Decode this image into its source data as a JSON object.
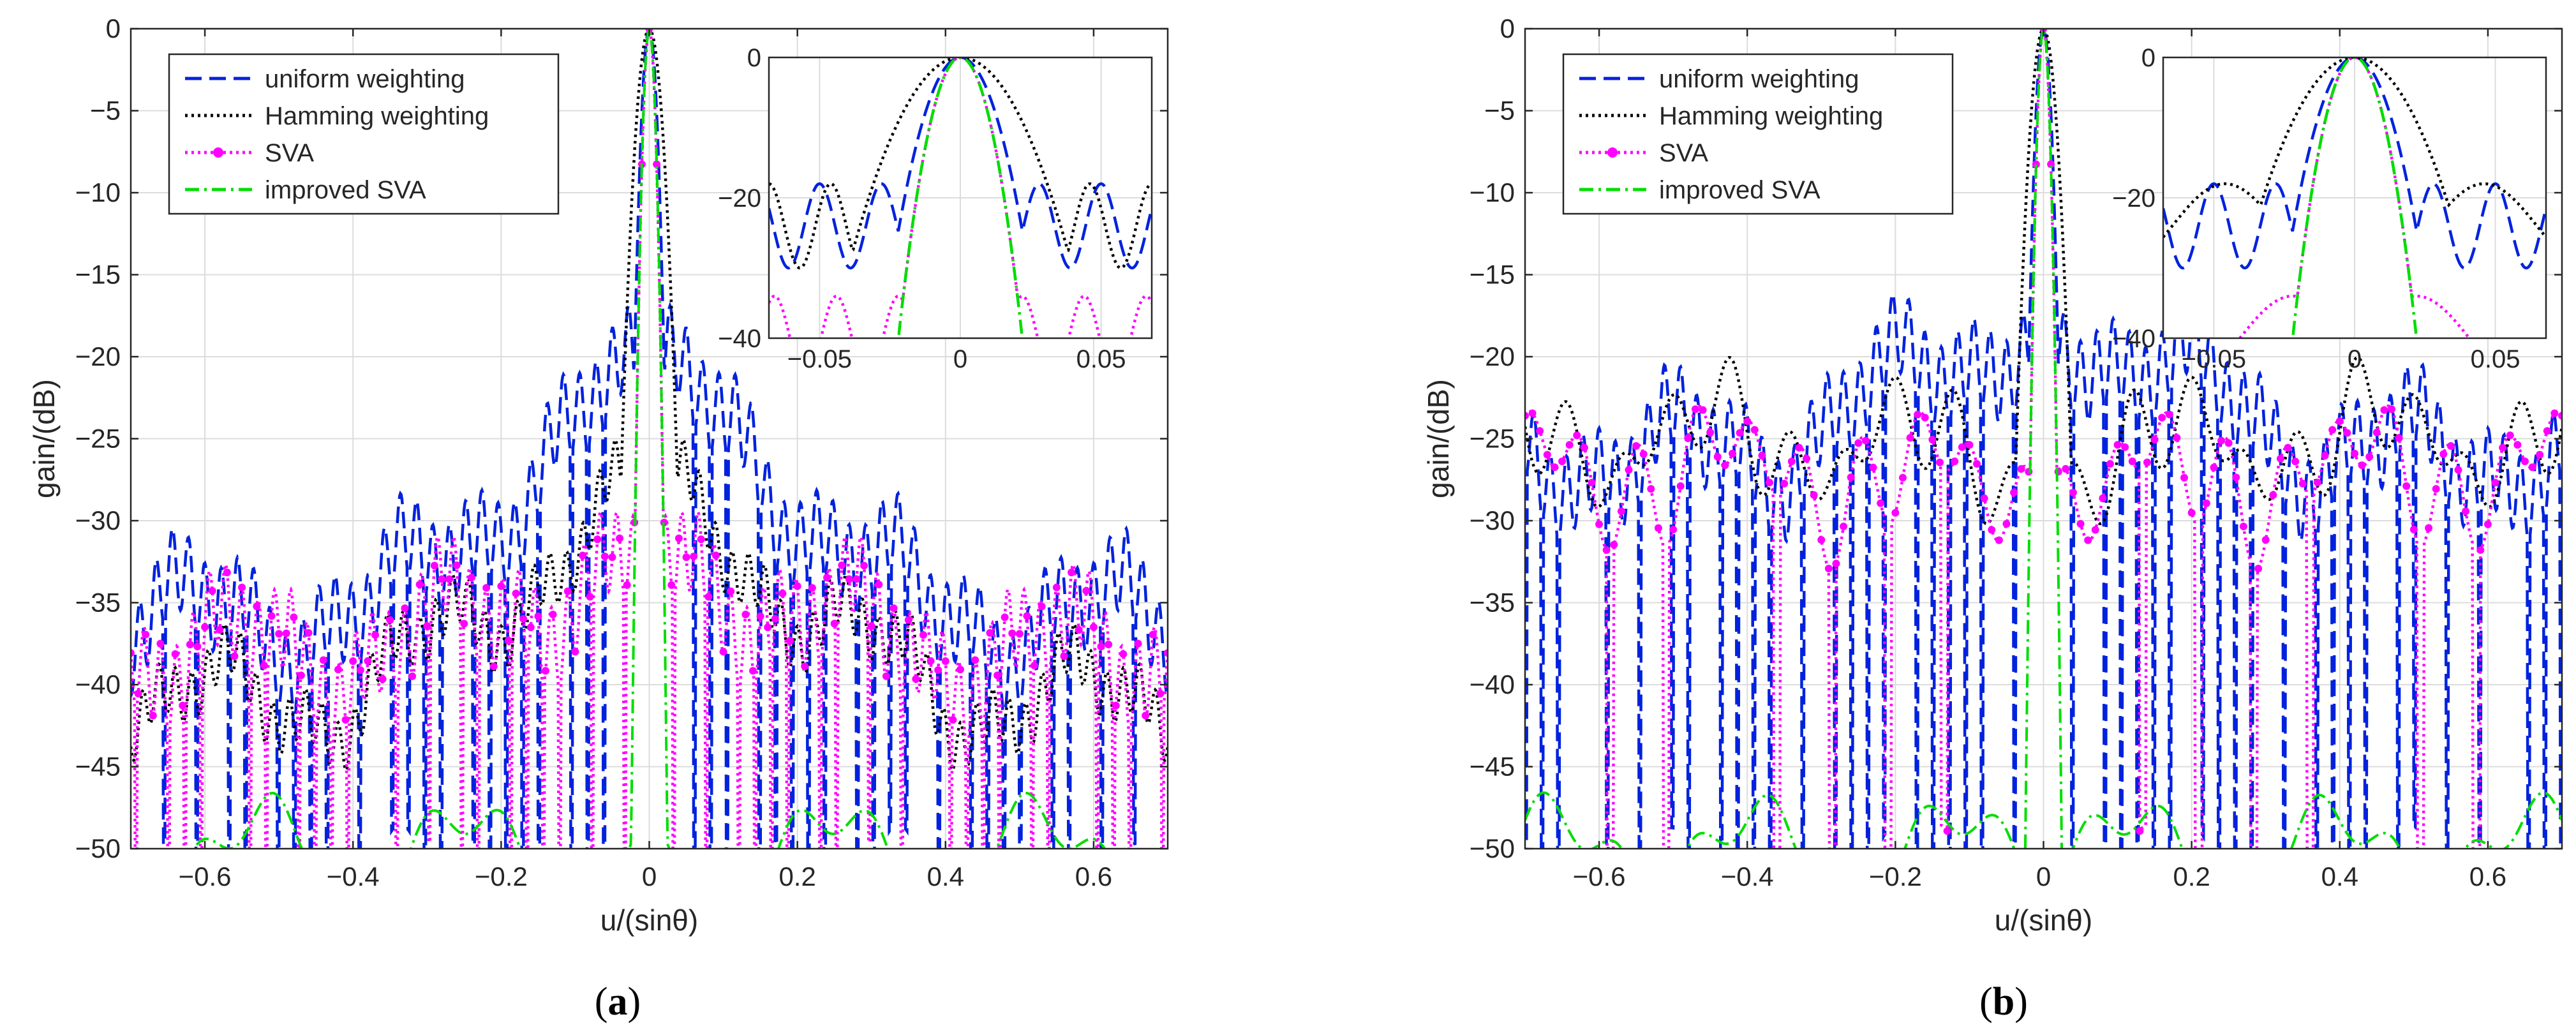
{
  "figure": {
    "panels": [
      {
        "label_open": "(",
        "label": "a",
        "label_close": ")"
      },
      {
        "label_open": "(",
        "label": "b",
        "label_close": ")"
      }
    ]
  },
  "chart_data": [
    {
      "type": "line",
      "panel": "a",
      "xlabel": "u/(sinθ)",
      "ylabel": "gain/(dB)",
      "xlim": [
        -0.7,
        0.7
      ],
      "ylim": [
        -50,
        0
      ],
      "xticks": [
        -0.6,
        -0.4,
        -0.2,
        0,
        0.2,
        0.4,
        0.6
      ],
      "xtick_labels": [
        "−0.6",
        "−0.4",
        "−0.2",
        "0",
        "0.2",
        "0.4",
        "0.6"
      ],
      "yticks": [
        0,
        -5,
        -10,
        -15,
        -20,
        -25,
        -30,
        -35,
        -40,
        -45,
        -50
      ],
      "ytick_labels": [
        "0",
        "−5",
        "−10",
        "−15",
        "−20",
        "−25",
        "−30",
        "−35",
        "−40",
        "−45",
        "−50"
      ],
      "grid": true,
      "legend": {
        "position": "top-left",
        "entries": [
          "uniform weighting",
          "Hamming weighting",
          "SVA",
          "improved SVA"
        ]
      },
      "series": [
        {
          "name": "uniform weighting",
          "color": "#0022dd",
          "style": "dashed",
          "mainlobe_halfwidth": 0.028,
          "floor_edge": -36,
          "floor_center": -22,
          "ripple": 2.5,
          "period": 0.022,
          "nulls": true
        },
        {
          "name": "Hamming weighting",
          "color": "#000000",
          "style": "dotted",
          "mainlobe_halfwidth": 0.046,
          "floor_edge": -41,
          "floor_center": -30,
          "ripple": 1.5,
          "period": 0.022,
          "nulls": false
        },
        {
          "name": "SVA",
          "color": "#ff00ff",
          "style": "dotted-markers",
          "mainlobe_halfwidth": 0.022,
          "floor_edge": -38,
          "floor_center": -33,
          "ripple": 2.5,
          "period": 0.022,
          "nulls": true
        },
        {
          "name": "improved SVA",
          "color": "#00dd00",
          "style": "dashdot",
          "mainlobe_halfwidth": 0.022,
          "floor_edge": -50,
          "floor_center": -50,
          "ripple": 0,
          "period": 0.022,
          "nulls": false
        }
      ],
      "inset": {
        "xlim": [
          -0.068,
          0.068
        ],
        "ylim": [
          -40,
          0
        ],
        "xticks": [
          -0.05,
          0,
          0.05
        ],
        "xtick_labels": [
          "−0.05",
          "0",
          "0.05"
        ],
        "yticks": [
          0,
          -20,
          -40
        ],
        "ytick_labels": [
          "0",
          "−20",
          "−40"
        ]
      }
    },
    {
      "type": "line",
      "panel": "b",
      "xlabel": "u/(sinθ)",
      "ylabel": "gain/(dB)",
      "xlim": [
        -0.7,
        0.7
      ],
      "ylim": [
        -50,
        0
      ],
      "xticks": [
        -0.6,
        -0.4,
        -0.2,
        0,
        0.2,
        0.4,
        0.6
      ],
      "xtick_labels": [
        "−0.6",
        "−0.4",
        "−0.2",
        "0",
        "0.2",
        "0.4",
        "0.6"
      ],
      "yticks": [
        0,
        -5,
        -10,
        -15,
        -20,
        -25,
        -30,
        -35,
        -40,
        -45,
        -50
      ],
      "ytick_labels": [
        "0",
        "−5",
        "−10",
        "−15",
        "−20",
        "−25",
        "−30",
        "−35",
        "−40",
        "−45",
        "−50"
      ],
      "grid": true,
      "legend": {
        "position": "top-left",
        "entries": [
          "uniform weighting",
          "Hamming weighting",
          "SVA",
          "improved SVA"
        ]
      },
      "series": [
        {
          "name": "uniform weighting",
          "color": "#0022dd",
          "style": "dashed",
          "mainlobe_halfwidth": 0.028,
          "floor_edge": -26,
          "floor_center": -18,
          "ripple": 2.5,
          "period": 0.022,
          "nulls": true
        },
        {
          "name": "Hamming weighting",
          "color": "#000000",
          "style": "dotted",
          "mainlobe_halfwidth": 0.046,
          "floor_edge": -25,
          "floor_center": -26,
          "ripple": 2.0,
          "period": 0.075,
          "nulls": false
        },
        {
          "name": "SVA",
          "color": "#ff00ff",
          "style": "dotted-markers",
          "mainlobe_halfwidth": 0.022,
          "floor_edge": -27,
          "floor_center": -28,
          "ripple": 2.5,
          "period": 0.075,
          "nulls": true
        },
        {
          "name": "improved SVA",
          "color": "#00dd00",
          "style": "dashdot",
          "mainlobe_halfwidth": 0.022,
          "floor_edge": -50,
          "floor_center": -50,
          "ripple": 0,
          "period": 0.075,
          "nulls": false
        }
      ],
      "inset": {
        "xlim": [
          -0.068,
          0.068
        ],
        "ylim": [
          -40,
          0
        ],
        "xticks": [
          -0.05,
          0,
          0.05
        ],
        "xtick_labels": [
          "−0.05",
          "0",
          "0.05"
        ],
        "yticks": [
          0,
          -20,
          -40
        ],
        "ytick_labels": [
          "0",
          "−20",
          "−40"
        ]
      }
    }
  ]
}
